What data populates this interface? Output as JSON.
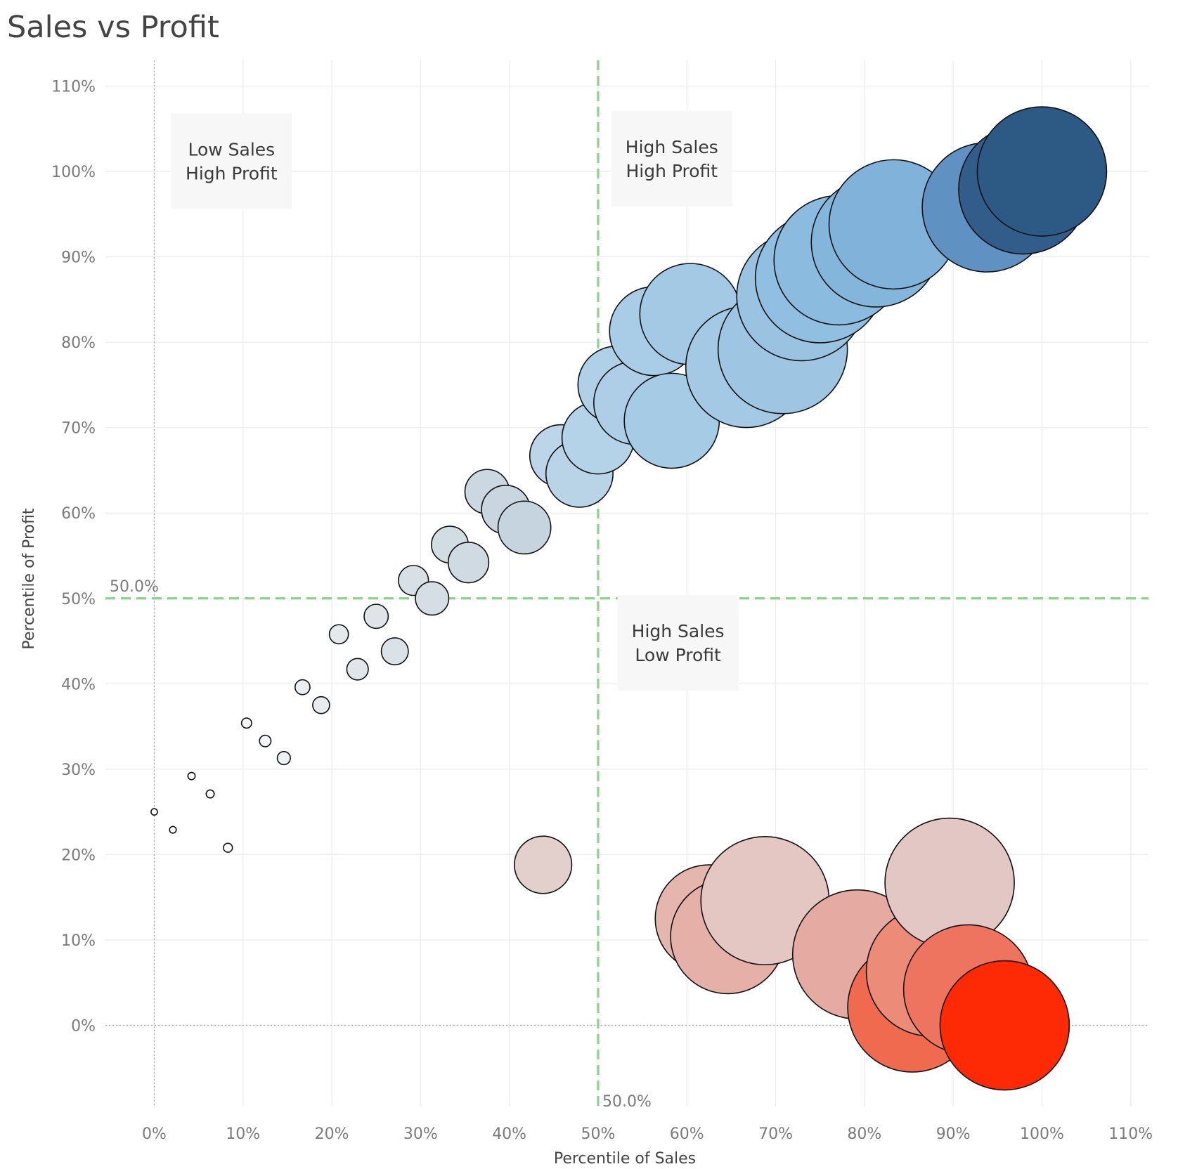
{
  "chart_data": {
    "type": "scatter",
    "title": "Sales vs Profit",
    "xlabel": "Percentile of Sales",
    "ylabel": "Percentile of Profit",
    "xlim": [
      -5.5,
      112
    ],
    "ylim": [
      -9.5,
      113
    ],
    "x_ticks": [
      0,
      10,
      20,
      30,
      40,
      50,
      60,
      70,
      80,
      90,
      100,
      110
    ],
    "y_ticks": [
      0,
      10,
      20,
      30,
      40,
      50,
      60,
      70,
      80,
      90,
      100,
      110
    ],
    "x_tick_labels": [
      "0%",
      "10%",
      "20%",
      "30%",
      "40%",
      "50%",
      "60%",
      "70%",
      "80%",
      "90%",
      "100%",
      "110%"
    ],
    "y_tick_labels": [
      "0%",
      "10%",
      "20%",
      "30%",
      "40%",
      "50%",
      "60%",
      "70%",
      "80%",
      "90%",
      "100%",
      "110%"
    ],
    "grid": true,
    "reference_lines": [
      {
        "axis": "x",
        "value": 50,
        "label": "50.0%",
        "color": "#8fd18f"
      },
      {
        "axis": "y",
        "value": 50,
        "label": "50.0%",
        "color": "#8fd18f"
      }
    ],
    "quadrant_labels": [
      {
        "lines": [
          "Low Sales",
          "High Profit"
        ],
        "x": 8.7,
        "y": 101.2
      },
      {
        "lines": [
          "High Sales",
          "High Profit"
        ],
        "x": 58.3,
        "y": 101.5
      },
      {
        "lines": [
          "High Sales",
          "Low Profit"
        ],
        "x": 59.0,
        "y": 44.8
      }
    ],
    "points": [
      {
        "x": 0.0,
        "y": 25.0,
        "size": 1,
        "color": "#ffffff"
      },
      {
        "x": 2.1,
        "y": 22.9,
        "size": 2,
        "color": "#ffffff"
      },
      {
        "x": 4.2,
        "y": 29.2,
        "size": 3,
        "color": "#ffffff"
      },
      {
        "x": 6.3,
        "y": 27.1,
        "size": 4,
        "color": "#ffffff"
      },
      {
        "x": 8.3,
        "y": 20.8,
        "size": 5,
        "color": "#ffffff"
      },
      {
        "x": 10.4,
        "y": 35.4,
        "size": 6,
        "color": "#f4f6f7"
      },
      {
        "x": 12.5,
        "y": 33.3,
        "size": 7,
        "color": "#f2f4f5"
      },
      {
        "x": 14.6,
        "y": 31.3,
        "size": 8,
        "color": "#eef1f3"
      },
      {
        "x": 16.7,
        "y": 39.6,
        "size": 9,
        "color": "#eaeef1"
      },
      {
        "x": 18.8,
        "y": 37.5,
        "size": 10,
        "color": "#e8ecef"
      },
      {
        "x": 20.8,
        "y": 45.8,
        "size": 11,
        "color": "#e4e9ec"
      },
      {
        "x": 22.9,
        "y": 41.7,
        "size": 12,
        "color": "#e1e6ea"
      },
      {
        "x": 25.0,
        "y": 47.9,
        "size": 13,
        "color": "#dee4e8"
      },
      {
        "x": 27.1,
        "y": 43.8,
        "size": 14,
        "color": "#dbe2e7"
      },
      {
        "x": 29.2,
        "y": 52.1,
        "size": 15,
        "color": "#d8e0e6"
      },
      {
        "x": 31.3,
        "y": 50.0,
        "size": 16,
        "color": "#d5dee4"
      },
      {
        "x": 33.3,
        "y": 56.3,
        "size": 17,
        "color": "#d2dce3"
      },
      {
        "x": 35.4,
        "y": 54.2,
        "size": 18,
        "color": "#cfdae2"
      },
      {
        "x": 37.5,
        "y": 62.5,
        "size": 19,
        "color": "#ccd8e1"
      },
      {
        "x": 39.6,
        "y": 60.4,
        "size": 20,
        "color": "#c9d6e0"
      },
      {
        "x": 41.7,
        "y": 58.3,
        "size": 21,
        "color": "#c6d4df"
      },
      {
        "x": 43.8,
        "y": 18.8,
        "size": 22,
        "color": "#e3cfcc"
      },
      {
        "x": 45.8,
        "y": 66.7,
        "size": 23,
        "color": "#bdd5e8"
      },
      {
        "x": 47.9,
        "y": 64.6,
        "size": 24,
        "color": "#bad4e7"
      },
      {
        "x": 50.0,
        "y": 68.8,
        "size": 25,
        "color": "#b4d2e8"
      },
      {
        "x": 52.1,
        "y": 75.0,
        "size": 26,
        "color": "#b0d0e7"
      },
      {
        "x": 54.2,
        "y": 72.9,
        "size": 27,
        "color": "#adcee6"
      },
      {
        "x": 56.3,
        "y": 81.3,
        "size": 28,
        "color": "#a9cde6"
      },
      {
        "x": 58.3,
        "y": 70.8,
        "size": 29,
        "color": "#a6cbe5"
      },
      {
        "x": 60.4,
        "y": 83.3,
        "size": 30,
        "color": "#a3c9e4"
      },
      {
        "x": 62.5,
        "y": 12.5,
        "size": 31,
        "color": "#e5b6ae"
      },
      {
        "x": 64.6,
        "y": 10.4,
        "size": 32,
        "color": "#e4b0a7"
      },
      {
        "x": 66.7,
        "y": 77.1,
        "size": 33,
        "color": "#a3c9e4"
      },
      {
        "x": 68.8,
        "y": 14.6,
        "size": 34,
        "color": "#e4c6c2"
      },
      {
        "x": 70.8,
        "y": 79.2,
        "size": 35,
        "color": "#9ec6e3"
      },
      {
        "x": 72.9,
        "y": 85.4,
        "size": 36,
        "color": "#9ac3e2"
      },
      {
        "x": 75.0,
        "y": 87.5,
        "size": 37,
        "color": "#90bfe1"
      },
      {
        "x": 77.1,
        "y": 89.6,
        "size": 38,
        "color": "#8bbbdf"
      },
      {
        "x": 79.2,
        "y": 8.3,
        "size": 39,
        "color": "#e5aaa1"
      },
      {
        "x": 81.3,
        "y": 91.7,
        "size": 40,
        "color": "#84b6dc"
      },
      {
        "x": 83.3,
        "y": 93.8,
        "size": 41,
        "color": "#80b2da"
      },
      {
        "x": 85.4,
        "y": 2.1,
        "size": 42,
        "color": "#ef6a4e"
      },
      {
        "x": 87.5,
        "y": 6.3,
        "size": 43,
        "color": "#ec8b77"
      },
      {
        "x": 89.6,
        "y": 16.7,
        "size": 44,
        "color": "#e2c7c4"
      },
      {
        "x": 91.7,
        "y": 4.2,
        "size": 45,
        "color": "#ef7460"
      },
      {
        "x": 93.8,
        "y": 95.8,
        "size": 46,
        "color": "#5f92c2"
      },
      {
        "x": 95.8,
        "y": 0.0,
        "size": 47,
        "color": "#fe2a06"
      },
      {
        "x": 97.9,
        "y": 97.9,
        "size": 48,
        "color": "#325d8a"
      },
      {
        "x": 100.0,
        "y": 100.0,
        "size": 49,
        "color": "#2c5a85"
      }
    ]
  }
}
